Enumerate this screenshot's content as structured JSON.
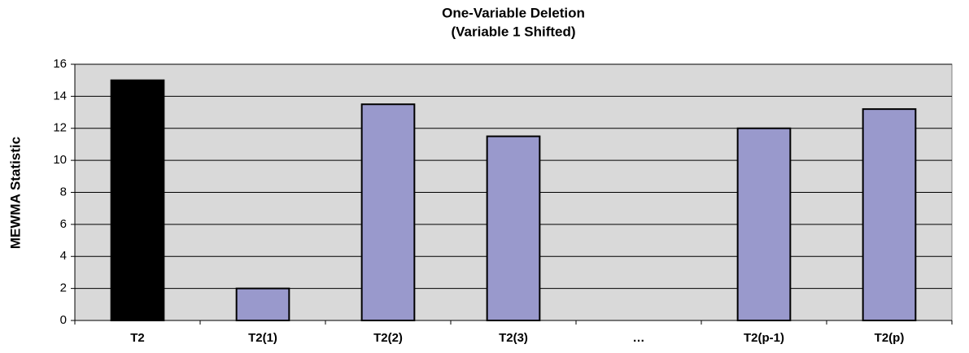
{
  "chart_data": {
    "type": "bar",
    "title": "One-Variable Deletion",
    "subtitle": "(Variable 1 Shifted)",
    "y_label": "MEWMA Statistic",
    "categories": [
      "T2",
      "T2(1)",
      "T2(2)",
      "T2(3)",
      "…",
      "T2(p-1)",
      "T2(p)"
    ],
    "values": [
      15,
      2,
      13.5,
      11.5,
      null,
      12,
      13.2
    ],
    "colors": [
      "#000000",
      "#9999cc",
      "#9999cc",
      "#9999cc",
      "#9999cc",
      "#9999cc",
      "#9999cc"
    ],
    "ylim": [
      0,
      16
    ],
    "yticks": [
      0,
      2,
      4,
      6,
      8,
      10,
      12,
      14,
      16
    ],
    "grid": true
  }
}
